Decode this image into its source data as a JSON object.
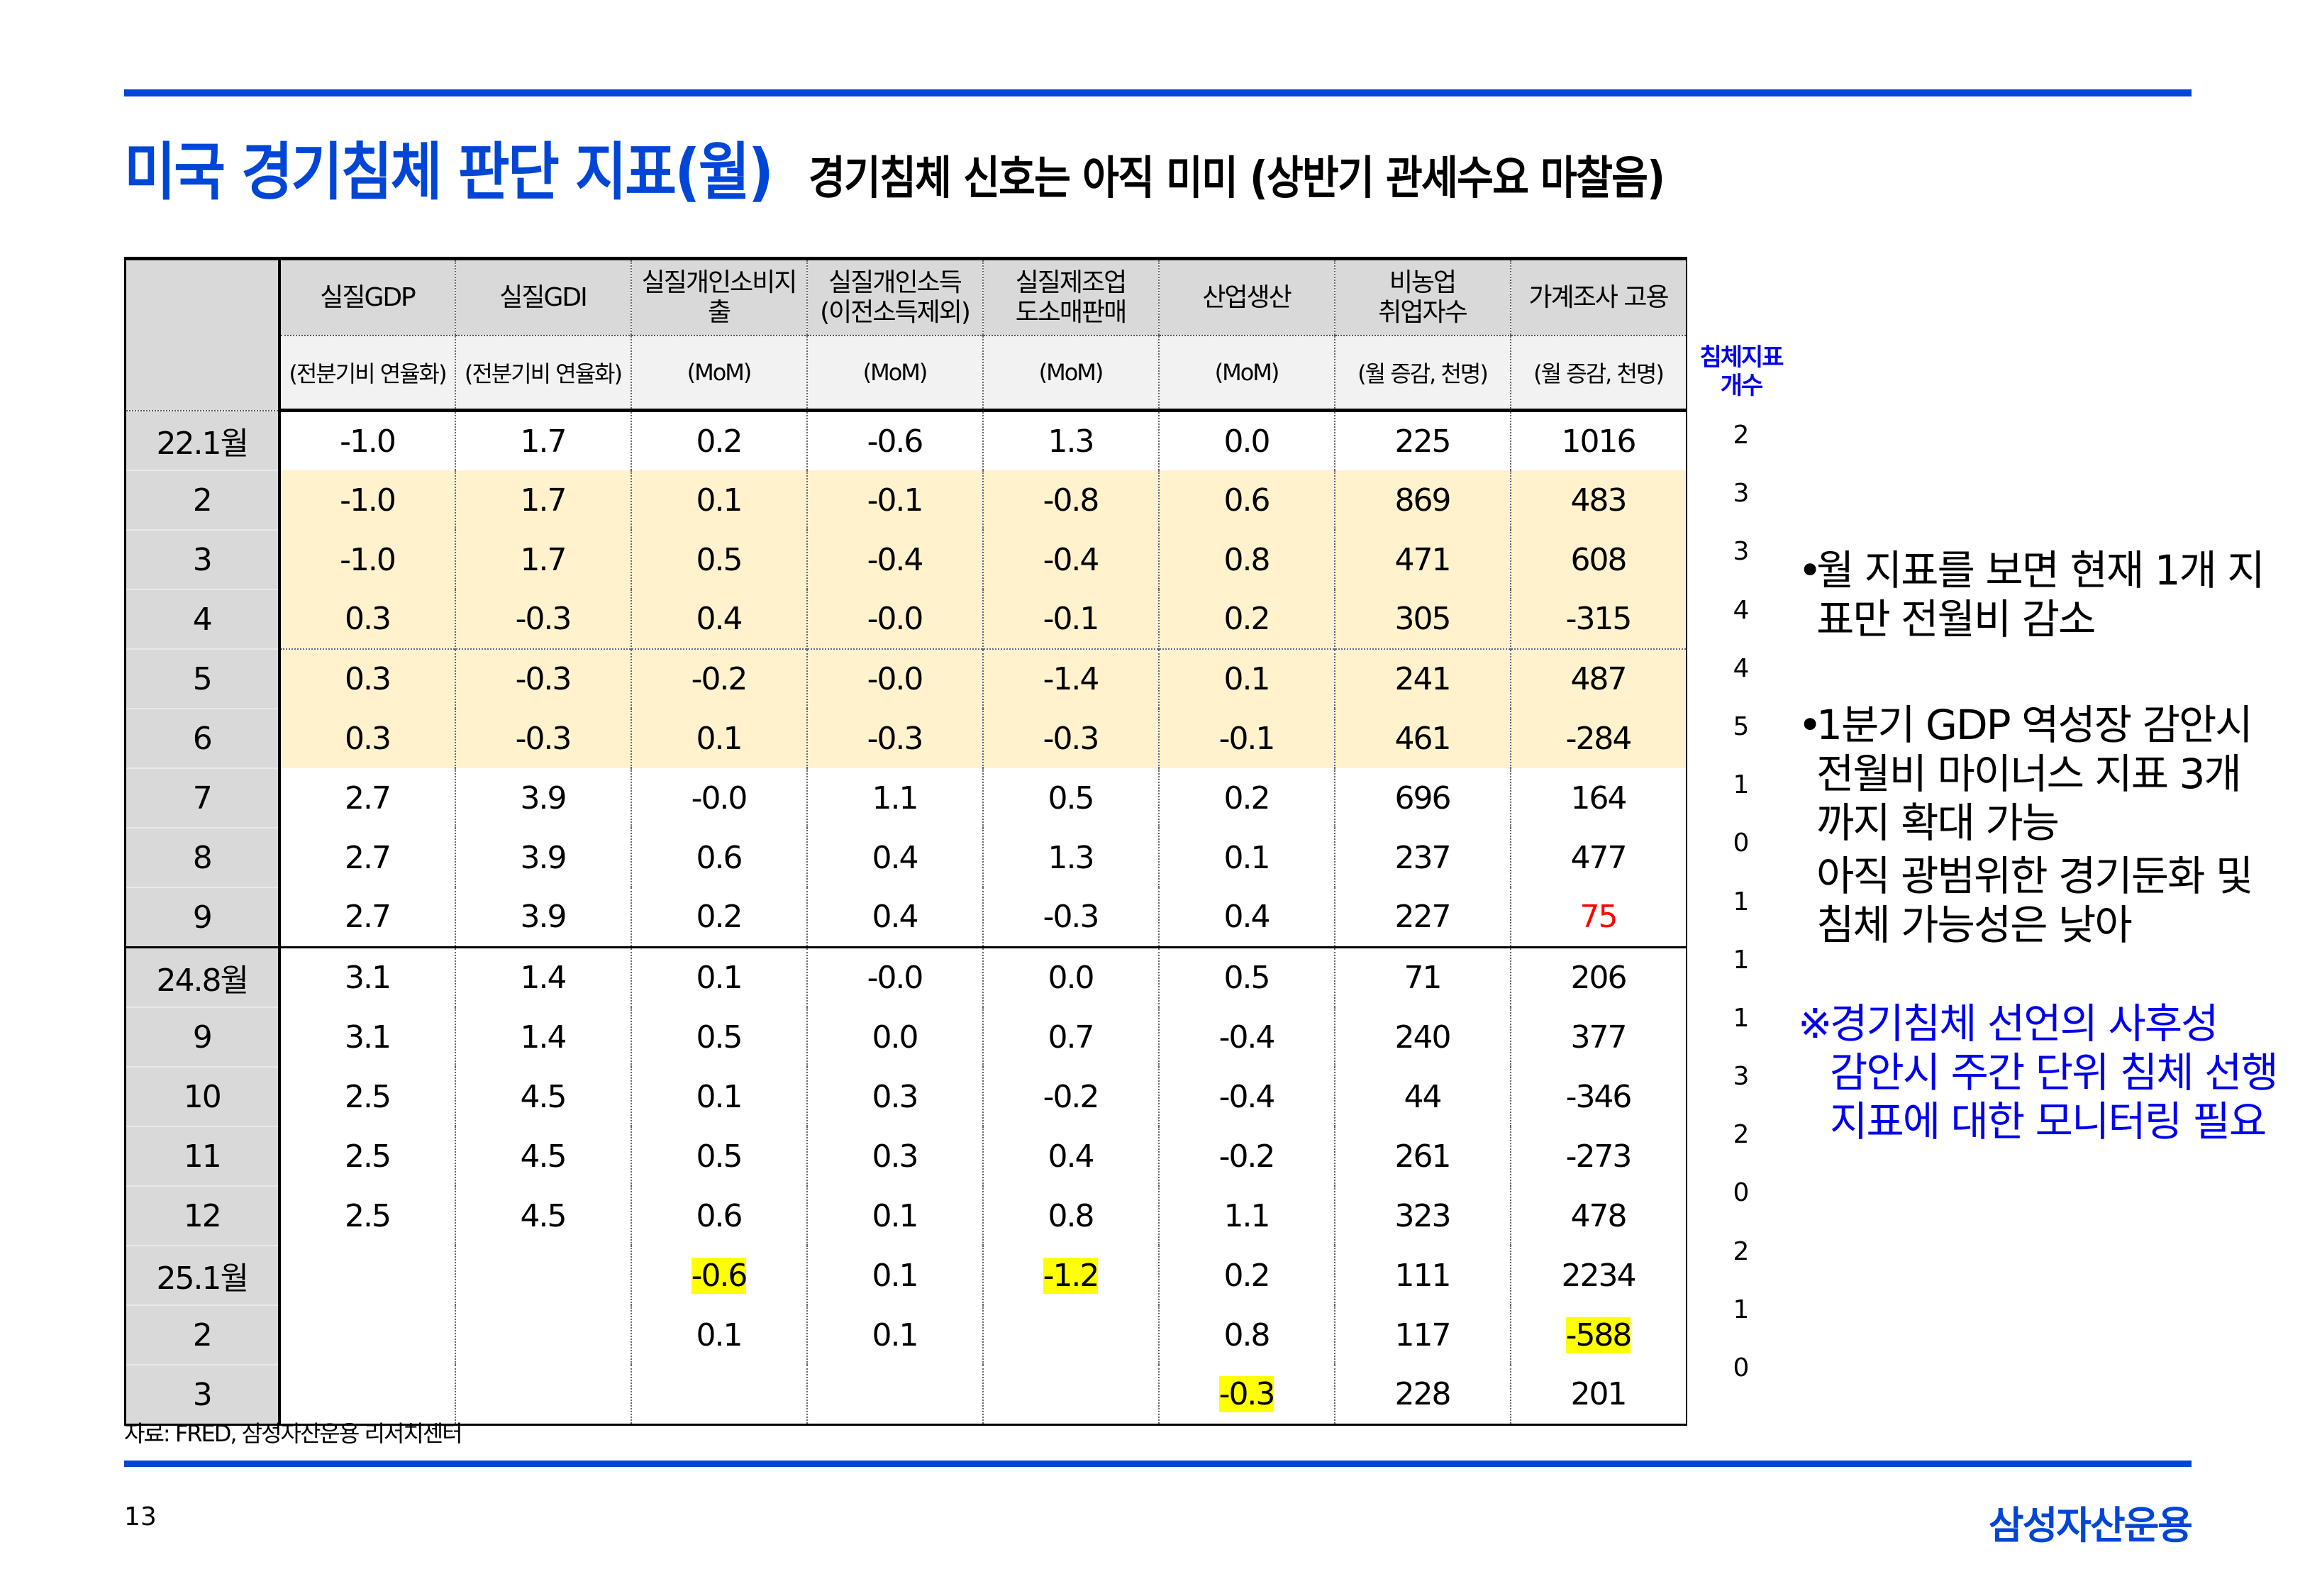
{
  "header": {
    "title": "미국 경기침체 판단 지표(월)",
    "subtitle": "경기침체 신호는 아직 미미 (상반기 관세수요 마찰음)"
  },
  "table": {
    "columns": [
      {
        "name": "실질GDP",
        "unit": "(전분기비 연율화)"
      },
      {
        "name": "실질GDI",
        "unit": "(전분기비 연율화)"
      },
      {
        "name": "실질개인소비지출",
        "unit": "(MoM)"
      },
      {
        "name": "실질개인소득\n(이전소득제외)",
        "unit": "(MoM)"
      },
      {
        "name": "실질제조업\n도소매판매",
        "unit": "(MoM)"
      },
      {
        "name": "산업생산",
        "unit": "(MoM)"
      },
      {
        "name": "비농업\n취업자수",
        "unit": "(월 증감, 천명)"
      },
      {
        "name": "가계조사 고용",
        "unit": "(월 증감, 천명)"
      }
    ],
    "count_header": "침체지표\n개수",
    "rows": [
      {
        "label": "22.1월",
        "values": [
          "-1.0",
          "1.7",
          "0.2",
          "-0.6",
          "1.3",
          "0.0",
          "225",
          "1016"
        ],
        "count": "2"
      },
      {
        "label": "2",
        "values": [
          "-1.0",
          "1.7",
          "0.1",
          "-0.1",
          "-0.8",
          "0.6",
          "869",
          "483"
        ],
        "count": "3"
      },
      {
        "label": "3",
        "values": [
          "-1.0",
          "1.7",
          "0.5",
          "-0.4",
          "-0.4",
          "0.8",
          "471",
          "608"
        ],
        "count": "3"
      },
      {
        "label": "4",
        "values": [
          "0.3",
          "-0.3",
          "0.4",
          "-0.0",
          "-0.1",
          "0.2",
          "305",
          "-315"
        ],
        "count": "4"
      },
      {
        "label": "5",
        "values": [
          "0.3",
          "-0.3",
          "-0.2",
          "-0.0",
          "-1.4",
          "0.1",
          "241",
          "487"
        ],
        "count": "4"
      },
      {
        "label": "6",
        "values": [
          "0.3",
          "-0.3",
          "0.1",
          "-0.3",
          "-0.3",
          "-0.1",
          "461",
          "-284"
        ],
        "count": "5"
      },
      {
        "label": "7",
        "values": [
          "2.7",
          "3.9",
          "-0.0",
          "1.1",
          "0.5",
          "0.2",
          "696",
          "164"
        ],
        "count": "1"
      },
      {
        "label": "8",
        "values": [
          "2.7",
          "3.9",
          "0.6",
          "0.4",
          "1.3",
          "0.1",
          "237",
          "477"
        ],
        "count": "0"
      },
      {
        "label": "9",
        "values": [
          "2.7",
          "3.9",
          "0.2",
          "0.4",
          "-0.3",
          "0.4",
          "227",
          "75"
        ],
        "count": "1"
      },
      {
        "label": "24.8월",
        "values": [
          "3.1",
          "1.4",
          "0.1",
          "-0.0",
          "0.0",
          "0.5",
          "71",
          "206"
        ],
        "count": "1"
      },
      {
        "label": "9",
        "values": [
          "3.1",
          "1.4",
          "0.5",
          "0.0",
          "0.7",
          "-0.4",
          "240",
          "377"
        ],
        "count": "1"
      },
      {
        "label": "10",
        "values": [
          "2.5",
          "4.5",
          "0.1",
          "0.3",
          "-0.2",
          "-0.4",
          "44",
          "-346"
        ],
        "count": "3"
      },
      {
        "label": "11",
        "values": [
          "2.5",
          "4.5",
          "0.5",
          "0.3",
          "0.4",
          "-0.2",
          "261",
          "-273"
        ],
        "count": "2"
      },
      {
        "label": "12",
        "values": [
          "2.5",
          "4.5",
          "0.6",
          "0.1",
          "0.8",
          "1.1",
          "323",
          "478"
        ],
        "count": "0"
      },
      {
        "label": "25.1월",
        "values": [
          "",
          "",
          "-0.6",
          "0.1",
          "-1.2",
          "0.2",
          "111",
          "2234"
        ],
        "count": "2"
      },
      {
        "label": "2",
        "values": [
          "",
          "",
          "0.1",
          "0.1",
          "",
          "0.8",
          "117",
          "-588"
        ],
        "count": "1"
      },
      {
        "label": "3",
        "values": [
          "",
          "",
          "",
          "",
          "",
          "-0.3",
          "228",
          "201"
        ],
        "count": "0"
      }
    ],
    "cream_rows": [
      1,
      2,
      3,
      4,
      5
    ],
    "yellow_highlight_cells": [
      [
        14,
        2
      ],
      [
        14,
        4
      ],
      [
        15,
        7
      ],
      [
        16,
        5
      ]
    ],
    "red_cells": [
      [
        8,
        7
      ]
    ],
    "colors": {
      "cream": "#fff2cc",
      "highlight": "#ffff00",
      "red": "#ff0000",
      "brand_blue": "#0046d6",
      "note_blue": "#0000ee"
    }
  },
  "notes": {
    "bullet1": "월 지표를 보면 현재 1개 지\n표만 전월비 감소",
    "bullet2": "1분기 GDP 역성장 감안시\n전월비 마이너스 지표 3개\n까지 확대 가능",
    "bullet2_cont": "아직 광범위한 경기둔화 및\n침체 가능성은 낮아",
    "notice_mark": "※",
    "notice": "경기침체 선언의 사후성\n감안시 주간 단위 침체 선행\n지표에 대한 모니터링 필요"
  },
  "footer": {
    "source": "자료: FRED, 삼성자산운용 리서치센터",
    "page_number": "13",
    "logo": "삼성자산운용"
  }
}
